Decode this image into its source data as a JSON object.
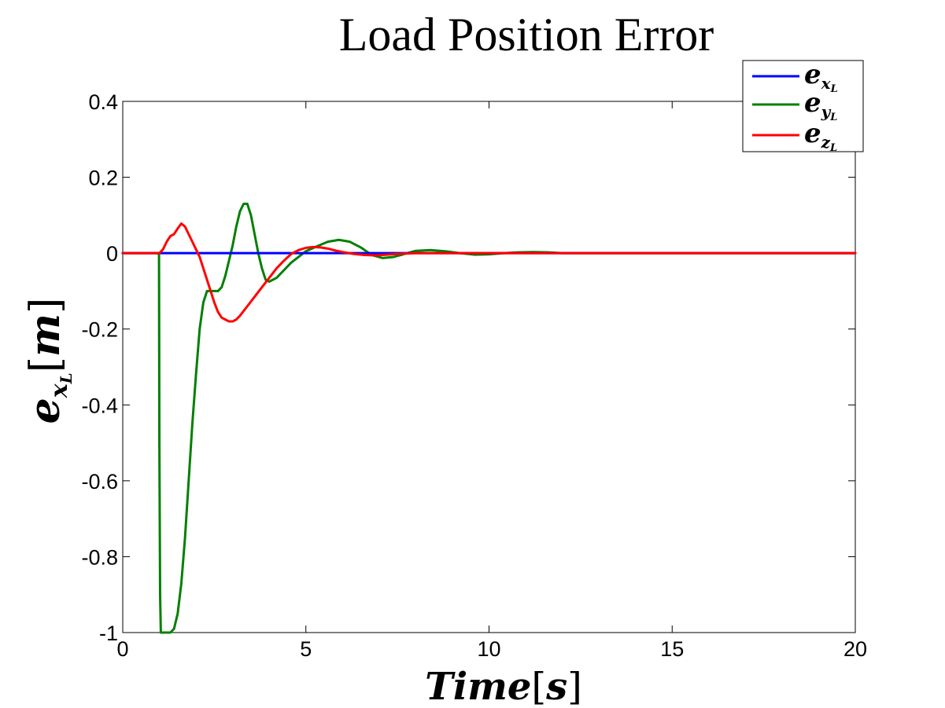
{
  "chart_data": {
    "type": "line",
    "title": "Load Position Error",
    "xlabel": {
      "main": "Time",
      "bracket_open": "[",
      "unit": "s",
      "bracket_close": "]"
    },
    "ylabel": {
      "main": "e",
      "sub": "x",
      "subsub": "L",
      "bracket_open": "[",
      "unit": "m",
      "bracket_close": "]"
    },
    "xlim": [
      0,
      20
    ],
    "ylim": [
      -1,
      0.4
    ],
    "xticks": [
      0,
      5,
      10,
      15,
      20
    ],
    "xtick_labels": [
      "0",
      "5",
      "10",
      "15",
      "20"
    ],
    "yticks": [
      0.4,
      0.2,
      0,
      -0.2,
      -0.4,
      -0.6,
      -0.8,
      -1
    ],
    "ytick_labels": [
      "0.4",
      "0.2",
      "0",
      "-0.2",
      "-0.4",
      "-0.6",
      "-0.8",
      "-1"
    ],
    "grid": false,
    "legend_position": "top-right",
    "series": [
      {
        "legend": {
          "main": "e",
          "sub": "x",
          "subsub": "L"
        },
        "color": "#0000ff",
        "x": [
          0,
          20
        ],
        "y": [
          0,
          0
        ]
      },
      {
        "legend": {
          "main": "e",
          "sub": "y",
          "subsub": "L"
        },
        "color": "#008000",
        "x": [
          0,
          0.99,
          1.0,
          1.02,
          1.04,
          1.1,
          1.2,
          1.3,
          1.4,
          1.5,
          1.6,
          1.7,
          1.8,
          1.9,
          2.0,
          2.1,
          2.2,
          2.3,
          2.4,
          2.5,
          2.6,
          2.7,
          2.8,
          2.9,
          3.0,
          3.1,
          3.2,
          3.3,
          3.4,
          3.5,
          3.6,
          3.7,
          3.8,
          3.9,
          4.0,
          4.2,
          4.4,
          4.6,
          4.8,
          5.0,
          5.3,
          5.6,
          5.9,
          6.2,
          6.5,
          6.8,
          7.1,
          7.4,
          7.7,
          8.0,
          8.4,
          8.8,
          9.2,
          9.6,
          10.0,
          10.4,
          10.8,
          11.2,
          11.6,
          12.0,
          13.0,
          15.0,
          20.0
        ],
        "y": [
          0,
          0,
          -0.5,
          -0.9,
          -1.0,
          -1.0,
          -1.0,
          -1.0,
          -0.99,
          -0.95,
          -0.87,
          -0.75,
          -0.6,
          -0.45,
          -0.32,
          -0.2,
          -0.13,
          -0.1,
          -0.1,
          -0.1,
          -0.1,
          -0.09,
          -0.06,
          -0.02,
          0.02,
          0.07,
          0.11,
          0.13,
          0.13,
          0.1,
          0.05,
          0.0,
          -0.04,
          -0.07,
          -0.075,
          -0.065,
          -0.045,
          -0.025,
          -0.01,
          0.005,
          0.018,
          0.03,
          0.035,
          0.03,
          0.015,
          -0.005,
          -0.013,
          -0.01,
          -0.002,
          0.006,
          0.008,
          0.005,
          0.0,
          -0.004,
          -0.003,
          0.0,
          0.002,
          0.003,
          0.002,
          0.0,
          0.0,
          0.0,
          0.0
        ]
      },
      {
        "legend": {
          "main": "e",
          "sub": "z",
          "subsub": "L"
        },
        "color": "#ff0000",
        "x": [
          0,
          1.0,
          1.1,
          1.2,
          1.3,
          1.4,
          1.5,
          1.6,
          1.7,
          1.8,
          1.9,
          2.0,
          2.1,
          2.2,
          2.3,
          2.4,
          2.5,
          2.6,
          2.7,
          2.8,
          2.9,
          3.0,
          3.1,
          3.2,
          3.4,
          3.6,
          3.8,
          4.0,
          4.2,
          4.4,
          4.6,
          4.8,
          5.0,
          5.2,
          5.4,
          5.6,
          5.8,
          6.0,
          6.3,
          6.6,
          6.9,
          7.2,
          7.5,
          8.0,
          8.5,
          9.0,
          10.0,
          20.0
        ],
        "y": [
          0,
          0,
          0.01,
          0.03,
          0.045,
          0.05,
          0.065,
          0.078,
          0.07,
          0.05,
          0.03,
          0.01,
          -0.01,
          -0.04,
          -0.07,
          -0.1,
          -0.13,
          -0.155,
          -0.17,
          -0.175,
          -0.18,
          -0.18,
          -0.175,
          -0.165,
          -0.14,
          -0.115,
          -0.09,
          -0.065,
          -0.04,
          -0.02,
          -0.002,
          0.008,
          0.014,
          0.016,
          0.015,
          0.012,
          0.007,
          0.003,
          -0.002,
          -0.005,
          -0.006,
          -0.004,
          -0.002,
          0.0,
          0.0,
          0.0,
          0.0,
          0.0
        ]
      }
    ]
  }
}
